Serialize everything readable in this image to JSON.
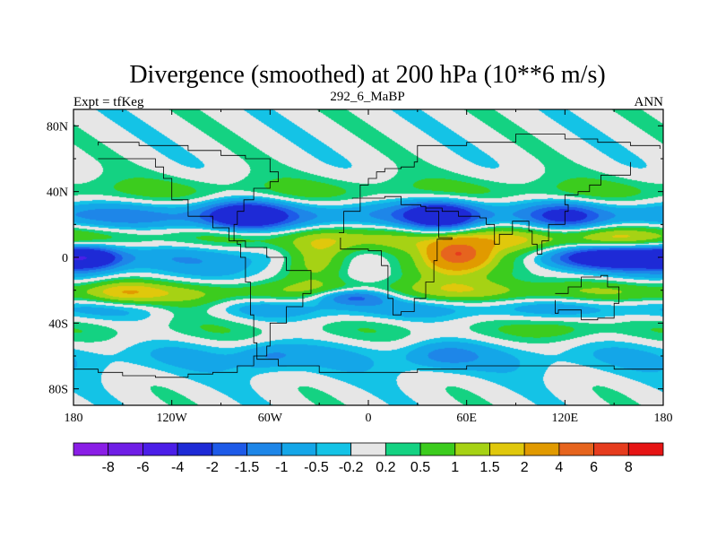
{
  "chart_data": {
    "type": "heatmap",
    "title": "Divergence (smoothed) at 200 hPa (10**6 m/s)",
    "left_string": "Expt = tfKeg",
    "center_string": "292_6_MaBP",
    "right_string": "ANN",
    "x_ticks": [
      "180",
      "120W",
      "60W",
      "0",
      "60E",
      "120E",
      "180"
    ],
    "x_tick_values": [
      -180,
      -120,
      -60,
      0,
      60,
      120,
      180
    ],
    "y_ticks": [
      "80N",
      "40N",
      "0",
      "40S",
      "80S"
    ],
    "y_tick_values": [
      80,
      40,
      0,
      -40,
      -80
    ],
    "xlim": [
      -180,
      180
    ],
    "ylim": [
      -90,
      90
    ],
    "colorbar": {
      "levels": [
        "-8",
        "-6",
        "-4",
        "-2",
        "-1.5",
        "-1",
        "-0.5",
        "-0.2",
        "0.2",
        "0.5",
        "1",
        "1.5",
        "2",
        "4",
        "6",
        "8"
      ],
      "colors": [
        "#8a1ee6",
        "#6f1ee6",
        "#4b1ee8",
        "#1e2ad6",
        "#1e5ae8",
        "#1e86e8",
        "#14a6e8",
        "#14c3e6",
        "#e6e6e6",
        "#14d282",
        "#3ccc1e",
        "#a6d214",
        "#e0c80c",
        "#e19a00",
        "#e6641e",
        "#e63c1e",
        "#e61414"
      ]
    },
    "grid": false,
    "zonal_bands": [
      {
        "lat": -80,
        "width": 14,
        "value": 0.0
      },
      {
        "lat": -60,
        "width": 12,
        "value": -0.5
      },
      {
        "lat": -45,
        "width": 10,
        "value": 0.4
      },
      {
        "lat": -30,
        "width": 8,
        "value": -1.0
      },
      {
        "lat": -22,
        "width": 8,
        "value": 1.2
      },
      {
        "lat": -12,
        "width": 8,
        "value": -0.3
      },
      {
        "lat": 0,
        "width": 9,
        "value": -0.8
      },
      {
        "lat": 12,
        "width": 8,
        "value": 0.8
      },
      {
        "lat": 25,
        "width": 9,
        "value": -1.2
      },
      {
        "lat": 40,
        "width": 9,
        "value": 0.6
      },
      {
        "lat": 55,
        "width": 10,
        "value": 0.0
      }
    ],
    "blobs": [
      {
        "lon": 60,
        "lat": 0,
        "rx": 45,
        "ry": 16,
        "value": 2.5
      },
      {
        "lon": 55,
        "lat": 2,
        "rx": 14,
        "ry": 7,
        "value": 4.5
      },
      {
        "lon": -30,
        "lat": 0,
        "rx": 22,
        "ry": 14,
        "value": 2.2
      },
      {
        "lon": 150,
        "lat": 0,
        "rx": 40,
        "ry": 7,
        "value": -3.0
      },
      {
        "lon": -170,
        "lat": 0,
        "rx": 18,
        "ry": 7,
        "value": -2.2
      },
      {
        "lon": -75,
        "lat": 25,
        "rx": 24,
        "ry": 9,
        "value": -2.5
      },
      {
        "lon": 45,
        "lat": 25,
        "rx": 22,
        "ry": 10,
        "value": -2.5
      },
      {
        "lon": 120,
        "lat": 25,
        "rx": 20,
        "ry": 8,
        "value": -1.3
      },
      {
        "lon": -10,
        "lat": -24,
        "rx": 24,
        "ry": 5,
        "value": -2.1
      },
      {
        "lon": -150,
        "lat": -22,
        "rx": 22,
        "ry": 8,
        "value": 1.2
      },
      {
        "lon": 150,
        "lat": 12,
        "rx": 26,
        "ry": 8,
        "value": 1.3
      },
      {
        "lon": -60,
        "lat": -60,
        "rx": 20,
        "ry": 8,
        "value": -0.8
      },
      {
        "lon": 45,
        "lat": -60,
        "rx": 22,
        "ry": 8,
        "value": -0.8
      },
      {
        "lon": -110,
        "lat": -30,
        "rx": 30,
        "ry": 8,
        "value": 0.8
      },
      {
        "lon": 120,
        "lat": -42,
        "rx": 25,
        "ry": 8,
        "value": 0.5
      }
    ],
    "coastlines": [
      [
        [
          -180,
          -68
        ],
        [
          -165,
          -70
        ],
        [
          -150,
          -72
        ],
        [
          -130,
          -73
        ],
        [
          -110,
          -71
        ],
        [
          -95,
          -70
        ],
        [
          -80,
          -66
        ],
        [
          -70,
          -60
        ],
        [
          -62,
          -54
        ],
        [
          -60,
          -40
        ],
        [
          -50,
          -30
        ],
        [
          -40,
          -22
        ],
        [
          -35,
          -8
        ],
        [
          -50,
          0
        ],
        [
          -62,
          6
        ],
        [
          -75,
          10
        ],
        [
          -80,
          8
        ],
        [
          -78,
          0
        ],
        [
          -75,
          -15
        ],
        [
          -72,
          -35
        ],
        [
          -70,
          -52
        ],
        [
          -68,
          -62
        ],
        [
          -55,
          -66
        ],
        [
          -30,
          -70
        ],
        [
          0,
          -70
        ],
        [
          30,
          -68
        ],
        [
          60,
          -66
        ],
        [
          90,
          -66
        ],
        [
          120,
          -66
        ],
        [
          150,
          -68
        ],
        [
          180,
          -70
        ]
      ],
      [
        [
          -165,
          60
        ],
        [
          -150,
          60
        ],
        [
          -130,
          55
        ],
        [
          -125,
          48
        ],
        [
          -120,
          35
        ],
        [
          -110,
          25
        ],
        [
          -95,
          18
        ],
        [
          -85,
          10
        ],
        [
          -80,
          10
        ],
        [
          -82,
          20
        ],
        [
          -80,
          28
        ],
        [
          -76,
          35
        ],
        [
          -70,
          42
        ],
        [
          -60,
          46
        ],
        [
          -55,
          52
        ],
        [
          -60,
          60
        ],
        [
          -75,
          62
        ],
        [
          -90,
          65
        ],
        [
          -110,
          68
        ],
        [
          -140,
          70
        ],
        [
          -165,
          68
        ]
      ],
      [
        [
          -18,
          15
        ],
        [
          -15,
          28
        ],
        [
          -5,
          36
        ],
        [
          10,
          37
        ],
        [
          20,
          32
        ],
        [
          32,
          31
        ],
        [
          35,
          28
        ],
        [
          43,
          12
        ],
        [
          51,
          11
        ],
        [
          42,
          -2
        ],
        [
          40,
          -15
        ],
        [
          35,
          -25
        ],
        [
          28,
          -33
        ],
        [
          20,
          -35
        ],
        [
          15,
          -25
        ],
        [
          12,
          -5
        ],
        [
          8,
          4
        ],
        [
          0,
          5
        ],
        [
          -8,
          5
        ],
        [
          -17,
          12
        ]
      ],
      [
        [
          -10,
          36
        ],
        [
          -5,
          44
        ],
        [
          0,
          48
        ],
        [
          5,
          52
        ],
        [
          10,
          54
        ],
        [
          20,
          55
        ],
        [
          28,
          58
        ],
        [
          30,
          68
        ],
        [
          60,
          70
        ],
        [
          90,
          75
        ],
        [
          120,
          72
        ],
        [
          140,
          70
        ],
        [
          160,
          68
        ],
        [
          178,
          66
        ]
      ],
      [
        [
          35,
          30
        ],
        [
          45,
          28
        ],
        [
          55,
          25
        ],
        [
          60,
          25
        ],
        [
          68,
          24
        ],
        [
          72,
          20
        ],
        [
          77,
          8
        ],
        [
          80,
          14
        ],
        [
          88,
          22
        ],
        [
          92,
          22
        ],
        [
          98,
          16
        ],
        [
          100,
          8
        ],
        [
          103,
          2
        ],
        [
          106,
          10
        ],
        [
          110,
          20
        ],
        [
          120,
          28
        ],
        [
          122,
          32
        ],
        [
          120,
          38
        ],
        [
          128,
          40
        ],
        [
          135,
          44
        ],
        [
          142,
          50
        ],
        [
          160,
          58
        ]
      ],
      [
        [
          114,
          -22
        ],
        [
          122,
          -18
        ],
        [
          130,
          -12
        ],
        [
          137,
          -12
        ],
        [
          142,
          -11
        ],
        [
          146,
          -18
        ],
        [
          153,
          -28
        ],
        [
          150,
          -37
        ],
        [
          140,
          -38
        ],
        [
          130,
          -32
        ],
        [
          116,
          -34
        ],
        [
          114,
          -26
        ]
      ]
    ]
  }
}
